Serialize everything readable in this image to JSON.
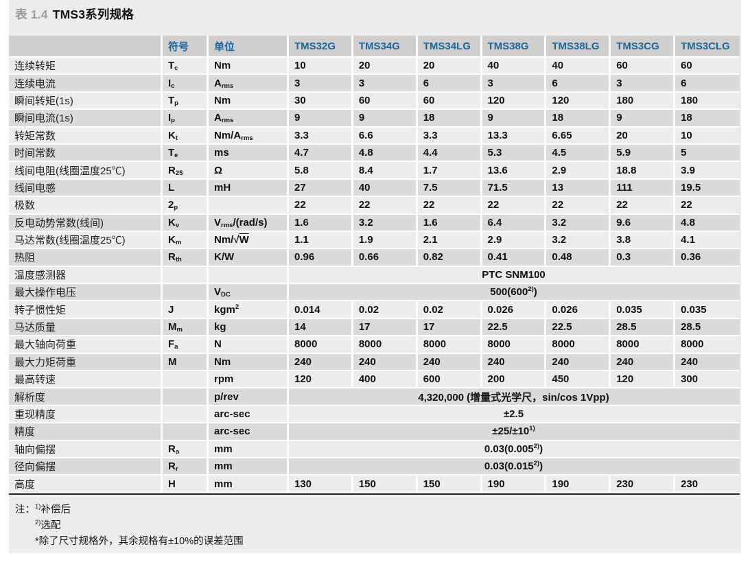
{
  "title": {
    "prefix": "表 1.4",
    "name": "TMS3系列规格"
  },
  "colors": {
    "accent_blue": "#17689e",
    "header_bg": "#d0cfce",
    "row_light": "#edecec",
    "row_dark": "#dbdad9",
    "panel_bg": "#edecec",
    "page_bg": "#ffffff",
    "title_gray": "#9c9c9c",
    "text_dark": "#141414",
    "border_dark": "#222222"
  },
  "table": {
    "symbol_header": "符号",
    "unit_header": "单位",
    "models": [
      "TMS32G",
      "TMS34G",
      "TMS34LG",
      "TMS38G",
      "TMS38LG",
      "TMS3CG",
      "TMS3CLG"
    ],
    "rows": [
      {
        "label": "连续转矩",
        "symbol": "T~c~",
        "unit": "Nm",
        "values": [
          "10",
          "20",
          "20",
          "40",
          "40",
          "60",
          "60"
        ]
      },
      {
        "label": "连续电流",
        "symbol": "I~c~",
        "unit": "A~rms~",
        "values": [
          "3",
          "3",
          "6",
          "3",
          "6",
          "3",
          "6"
        ]
      },
      {
        "label": "瞬间转矩(1s)",
        "symbol": "T~p~",
        "unit": "Nm",
        "values": [
          "30",
          "60",
          "60",
          "120",
          "120",
          "180",
          "180"
        ]
      },
      {
        "label": "瞬间电流(1s)",
        "symbol": "I~p~",
        "unit": "A~rms~",
        "values": [
          "9",
          "9",
          "18",
          "9",
          "18",
          "9",
          "18"
        ]
      },
      {
        "label": "转矩常数",
        "symbol": "K~t~",
        "unit": "Nm/A~rms~",
        "values": [
          "3.3",
          "6.6",
          "3.3",
          "13.3",
          "6.65",
          "20",
          "10"
        ]
      },
      {
        "label": "时间常数",
        "symbol": "T~e~",
        "unit": "ms",
        "values": [
          "4.7",
          "4.8",
          "4.4",
          "5.3",
          "4.5",
          "5.9",
          "5"
        ]
      },
      {
        "label": "线间电阻(线圈温度25℃)",
        "symbol": "R~25~",
        "unit": "Ω",
        "values": [
          "5.8",
          "8.4",
          "1.7",
          "13.6",
          "2.9",
          "18.8",
          "3.9"
        ]
      },
      {
        "label": "线间电感",
        "symbol": "L",
        "unit": "mH",
        "values": [
          "27",
          "40",
          "7.5",
          "71.5",
          "13",
          "111",
          "19.5"
        ]
      },
      {
        "label": "极数",
        "symbol": "2~p~",
        "unit": "",
        "values": [
          "22",
          "22",
          "22",
          "22",
          "22",
          "22",
          "22"
        ]
      },
      {
        "label": "反电动势常数(线间)",
        "symbol": "K~v~",
        "unit": "V~rms~/(rad/s)",
        "values": [
          "1.6",
          "3.2",
          "1.6",
          "6.4",
          "3.2",
          "9.6",
          "4.8"
        ]
      },
      {
        "label": "马达常数(线圈温度25℃)",
        "symbol": "K~m~",
        "unit": "Nm/√=W=",
        "values": [
          "1.1",
          "1.9",
          "2.1",
          "2.9",
          "3.2",
          "3.8",
          "4.1"
        ]
      },
      {
        "label": "热阻",
        "symbol": "R~th~",
        "unit": "K/W",
        "values": [
          "0.96",
          "0.66",
          "0.82",
          "0.41",
          "0.48",
          "0.3",
          "0.36"
        ]
      },
      {
        "label": "温度感测器",
        "symbol": "",
        "unit": "",
        "span": "PTC SNM100"
      },
      {
        "label": "最大操作电压",
        "symbol": "",
        "unit": "V~DC~",
        "span": "500(600^2)^)"
      },
      {
        "label": "转子惯性矩",
        "symbol": "J",
        "unit": "kgm^2^",
        "values": [
          "0.014",
          "0.02",
          "0.02",
          "0.026",
          "0.026",
          "0.035",
          "0.035"
        ]
      },
      {
        "label": "马达质量",
        "symbol": "M~m~",
        "unit": "kg",
        "values": [
          "14",
          "17",
          "17",
          "22.5",
          "22.5",
          "28.5",
          "28.5"
        ]
      },
      {
        "label": "最大轴向荷重",
        "symbol": "F~a~",
        "unit": "N",
        "values": [
          "8000",
          "8000",
          "8000",
          "8000",
          "8000",
          "8000",
          "8000"
        ]
      },
      {
        "label": "最大力矩荷重",
        "symbol": "M",
        "unit": "Nm",
        "values": [
          "240",
          "240",
          "240",
          "240",
          "240",
          "240",
          "240"
        ]
      },
      {
        "label": "最高转速",
        "symbol": "",
        "unit": "rpm",
        "values": [
          "120",
          "400",
          "600",
          "200",
          "450",
          "120",
          "300"
        ]
      },
      {
        "label": "解析度",
        "symbol": "",
        "unit": "p/rev",
        "span": "4,320,000 (增量式光学尺，sin/cos 1Vpp)"
      },
      {
        "label": "重现精度",
        "symbol": "",
        "unit": "arc-sec",
        "span": "±2.5"
      },
      {
        "label": "精度",
        "symbol": "",
        "unit": "arc-sec",
        "span": "±25/±10^1)^"
      },
      {
        "label": "轴向偏摆",
        "symbol": "R~a~",
        "unit": "mm",
        "span": "0.03(0.005^2)^)"
      },
      {
        "label": "径向偏摆",
        "symbol": "R~r~",
        "unit": "mm",
        "span": "0.03(0.015^2)^)"
      },
      {
        "label": "高度",
        "symbol": "H",
        "unit": "mm",
        "values": [
          "130",
          "150",
          "150",
          "190",
          "190",
          "230",
          "230"
        ]
      }
    ]
  },
  "notes": {
    "prefix": "注：",
    "lines": [
      "^1)^补偿后",
      "^2)^选配",
      "*除了尺寸规格外，其余规格有±10%的误差范围"
    ]
  }
}
